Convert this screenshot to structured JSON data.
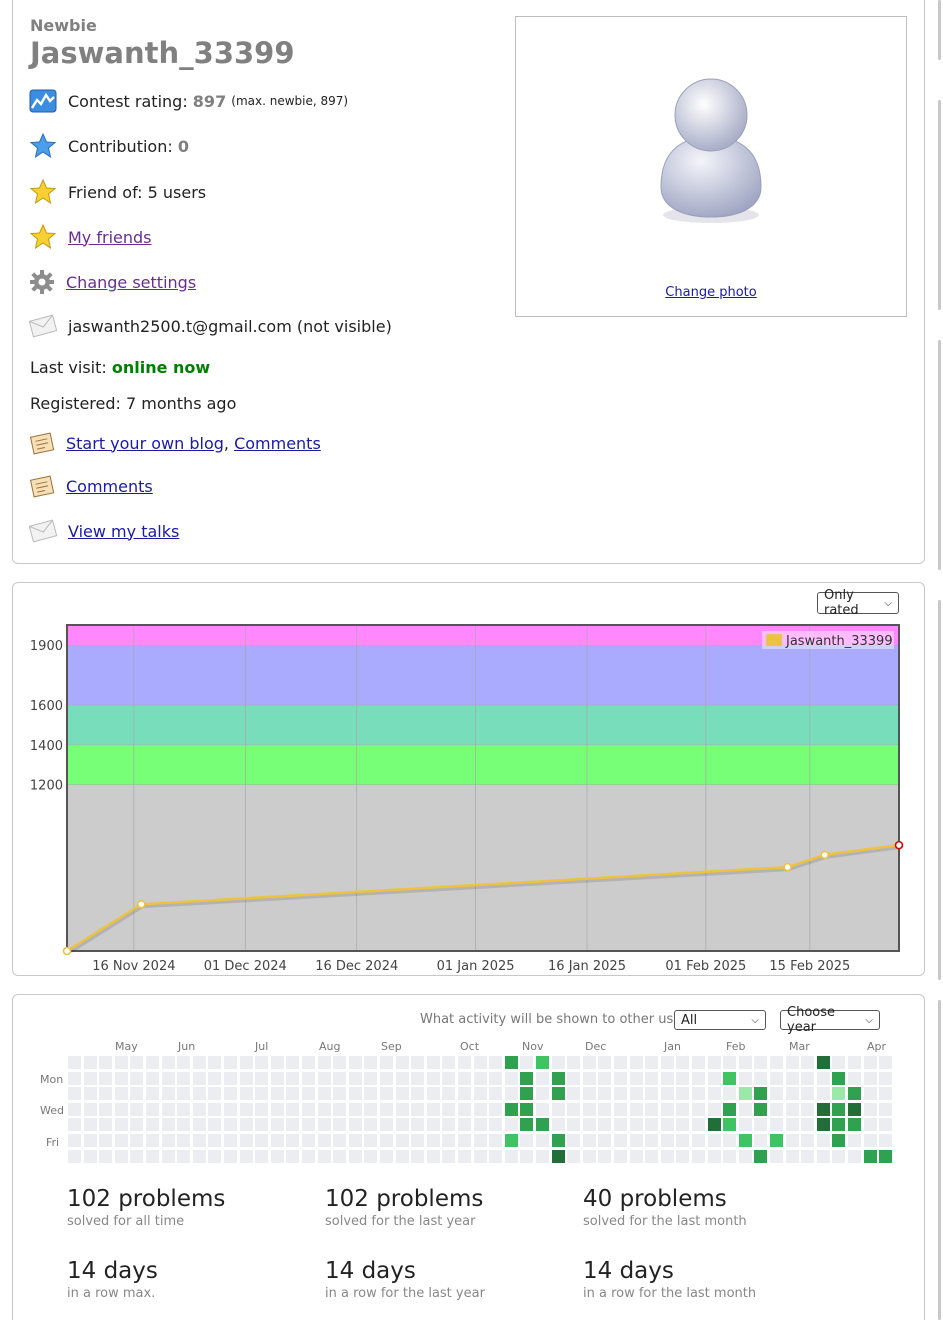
{
  "profile": {
    "rank": "Newbie",
    "handle": "Jaswanth_33399",
    "rating_label": "Contest rating:",
    "rating_value": "897",
    "rating_max": "(max. newbie, 897)",
    "contribution_label": "Contribution:",
    "contribution_value": "0",
    "friend_of": "Friend of: 5 users",
    "my_friends": "My friends",
    "change_settings": "Change settings",
    "email": "jaswanth2500.t@gmail.com (not visible)",
    "last_visit_label": "Last visit:",
    "last_visit_value": "online now",
    "registered": "Registered: 7 months ago",
    "start_blog": "Start your own blog",
    "comments_inline": "Comments",
    "comments": "Comments",
    "view_talks": "View my talks",
    "change_photo": "Change photo"
  },
  "rating_chart": {
    "filter_label": "Only rated",
    "legend": "Jaswanth_33399",
    "colors": {
      "line": "#edc240",
      "bg_gray": "#cccccc",
      "bg_green": "#77ff77",
      "bg_cyan": "#77ddbb",
      "bg_blue": "#aaaaff",
      "bg_violet": "#ff88ff",
      "grid": "#a8a8a8",
      "last_point": "#e00000"
    }
  },
  "chart_data": {
    "type": "line",
    "series": [
      {
        "name": "Jaswanth_33399",
        "points": [
          {
            "date": "2024-11-07",
            "rating": 366
          },
          {
            "date": "2024-11-17",
            "rating": 600
          },
          {
            "date": "2025-02-12",
            "rating": 787
          },
          {
            "date": "2025-02-17",
            "rating": 848
          },
          {
            "date": "2025-02-27",
            "rating": 897
          }
        ]
      }
    ],
    "x_ticks": [
      "16 Nov 2024",
      "01 Dec 2024",
      "16 Dec 2024",
      "01 Jan 2025",
      "16 Jan 2025",
      "01 Feb 2025",
      "15 Feb 2025"
    ],
    "y_ticks": [
      "1200",
      "1400",
      "1600",
      "1900"
    ],
    "x_range": [
      "2024-11-07",
      "2025-02-27"
    ],
    "y_range": [
      366,
      2001
    ],
    "bands": [
      {
        "from": 0,
        "to": 1200,
        "color": "#cccccc"
      },
      {
        "from": 1200,
        "to": 1400,
        "color": "#77ff77"
      },
      {
        "from": 1400,
        "to": 1600,
        "color": "#77ddbb"
      },
      {
        "from": 1600,
        "to": 1900,
        "color": "#aaaaff"
      },
      {
        "from": 1900,
        "to": 2100,
        "color": "#ff88ff"
      }
    ],
    "legend_position": "top-right",
    "grid": true
  },
  "activity": {
    "shown_label": "What activity will be shown to other users:",
    "shown_value": "All",
    "year_select": "Choose year",
    "months": [
      "May",
      "Jun",
      "Jul",
      "Aug",
      "Sep",
      "Oct",
      "Nov",
      "Dec",
      "Jan",
      "Feb",
      "Mar",
      "Apr"
    ],
    "days": [
      "Mon",
      "Wed",
      "Fri"
    ],
    "colors": [
      "#ebedf0",
      "#9be9a8",
      "#40c463",
      "#30a14e",
      "#216e39"
    ],
    "grid_levels": [
      "000000000000000000000000000030100000000000000000400000",
      "000000000000000000000000000003030000000000600000030",
      "000000000000000000000000000003030000000000023000023",
      "000000000000000000000000000033000000000000303000434",
      "000000000000000000000000000003300000000004100000433",
      "00000000000000000000000000001003000000000001010003",
      "000000000000000000000000000000040000000000003000000334"
    ]
  },
  "stats": [
    {
      "big": "102 problems",
      "sub": "solved for all time"
    },
    {
      "big": "102 problems",
      "sub": "solved for the last year"
    },
    {
      "big": "40 problems",
      "sub": "solved for the last month"
    },
    {
      "big": "14 days",
      "sub": "in a row max."
    },
    {
      "big": "14 days",
      "sub": "in a row for the last year"
    },
    {
      "big": "14 days",
      "sub": "in a row for the last month"
    }
  ]
}
